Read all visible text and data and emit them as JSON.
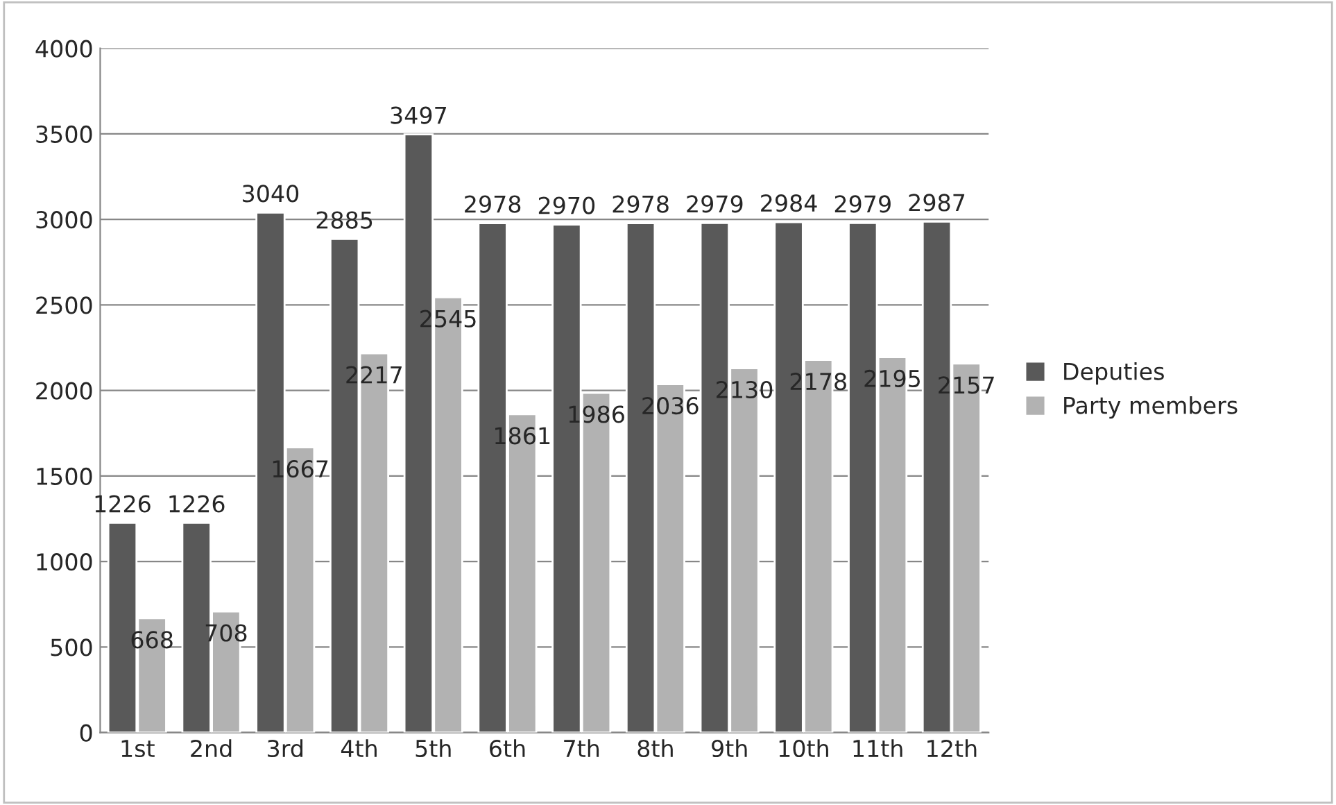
{
  "chart_data": {
    "type": "bar",
    "categories": [
      "1st",
      "2nd",
      "3rd",
      "4th",
      "5th",
      "6th",
      "7th",
      "8th",
      "9th",
      "10th",
      "11th",
      "12th"
    ],
    "series": [
      {
        "name": "Deputies",
        "color": "#595959",
        "values": [
          1226,
          1226,
          3040,
          2885,
          3497,
          2978,
          2970,
          2978,
          2979,
          2984,
          2979,
          2987
        ]
      },
      {
        "name": "Party members",
        "color": "#b2b2b2",
        "values": [
          668,
          708,
          1667,
          2217,
          2545,
          1861,
          1986,
          2036,
          2130,
          2178,
          2195,
          2157
        ]
      }
    ],
    "ylim": [
      0,
      4000
    ],
    "yticks": [
      0,
      500,
      1000,
      1500,
      2000,
      2500,
      3000,
      3500,
      4000
    ],
    "grid": "y",
    "legend": "right",
    "data_labels": true
  }
}
